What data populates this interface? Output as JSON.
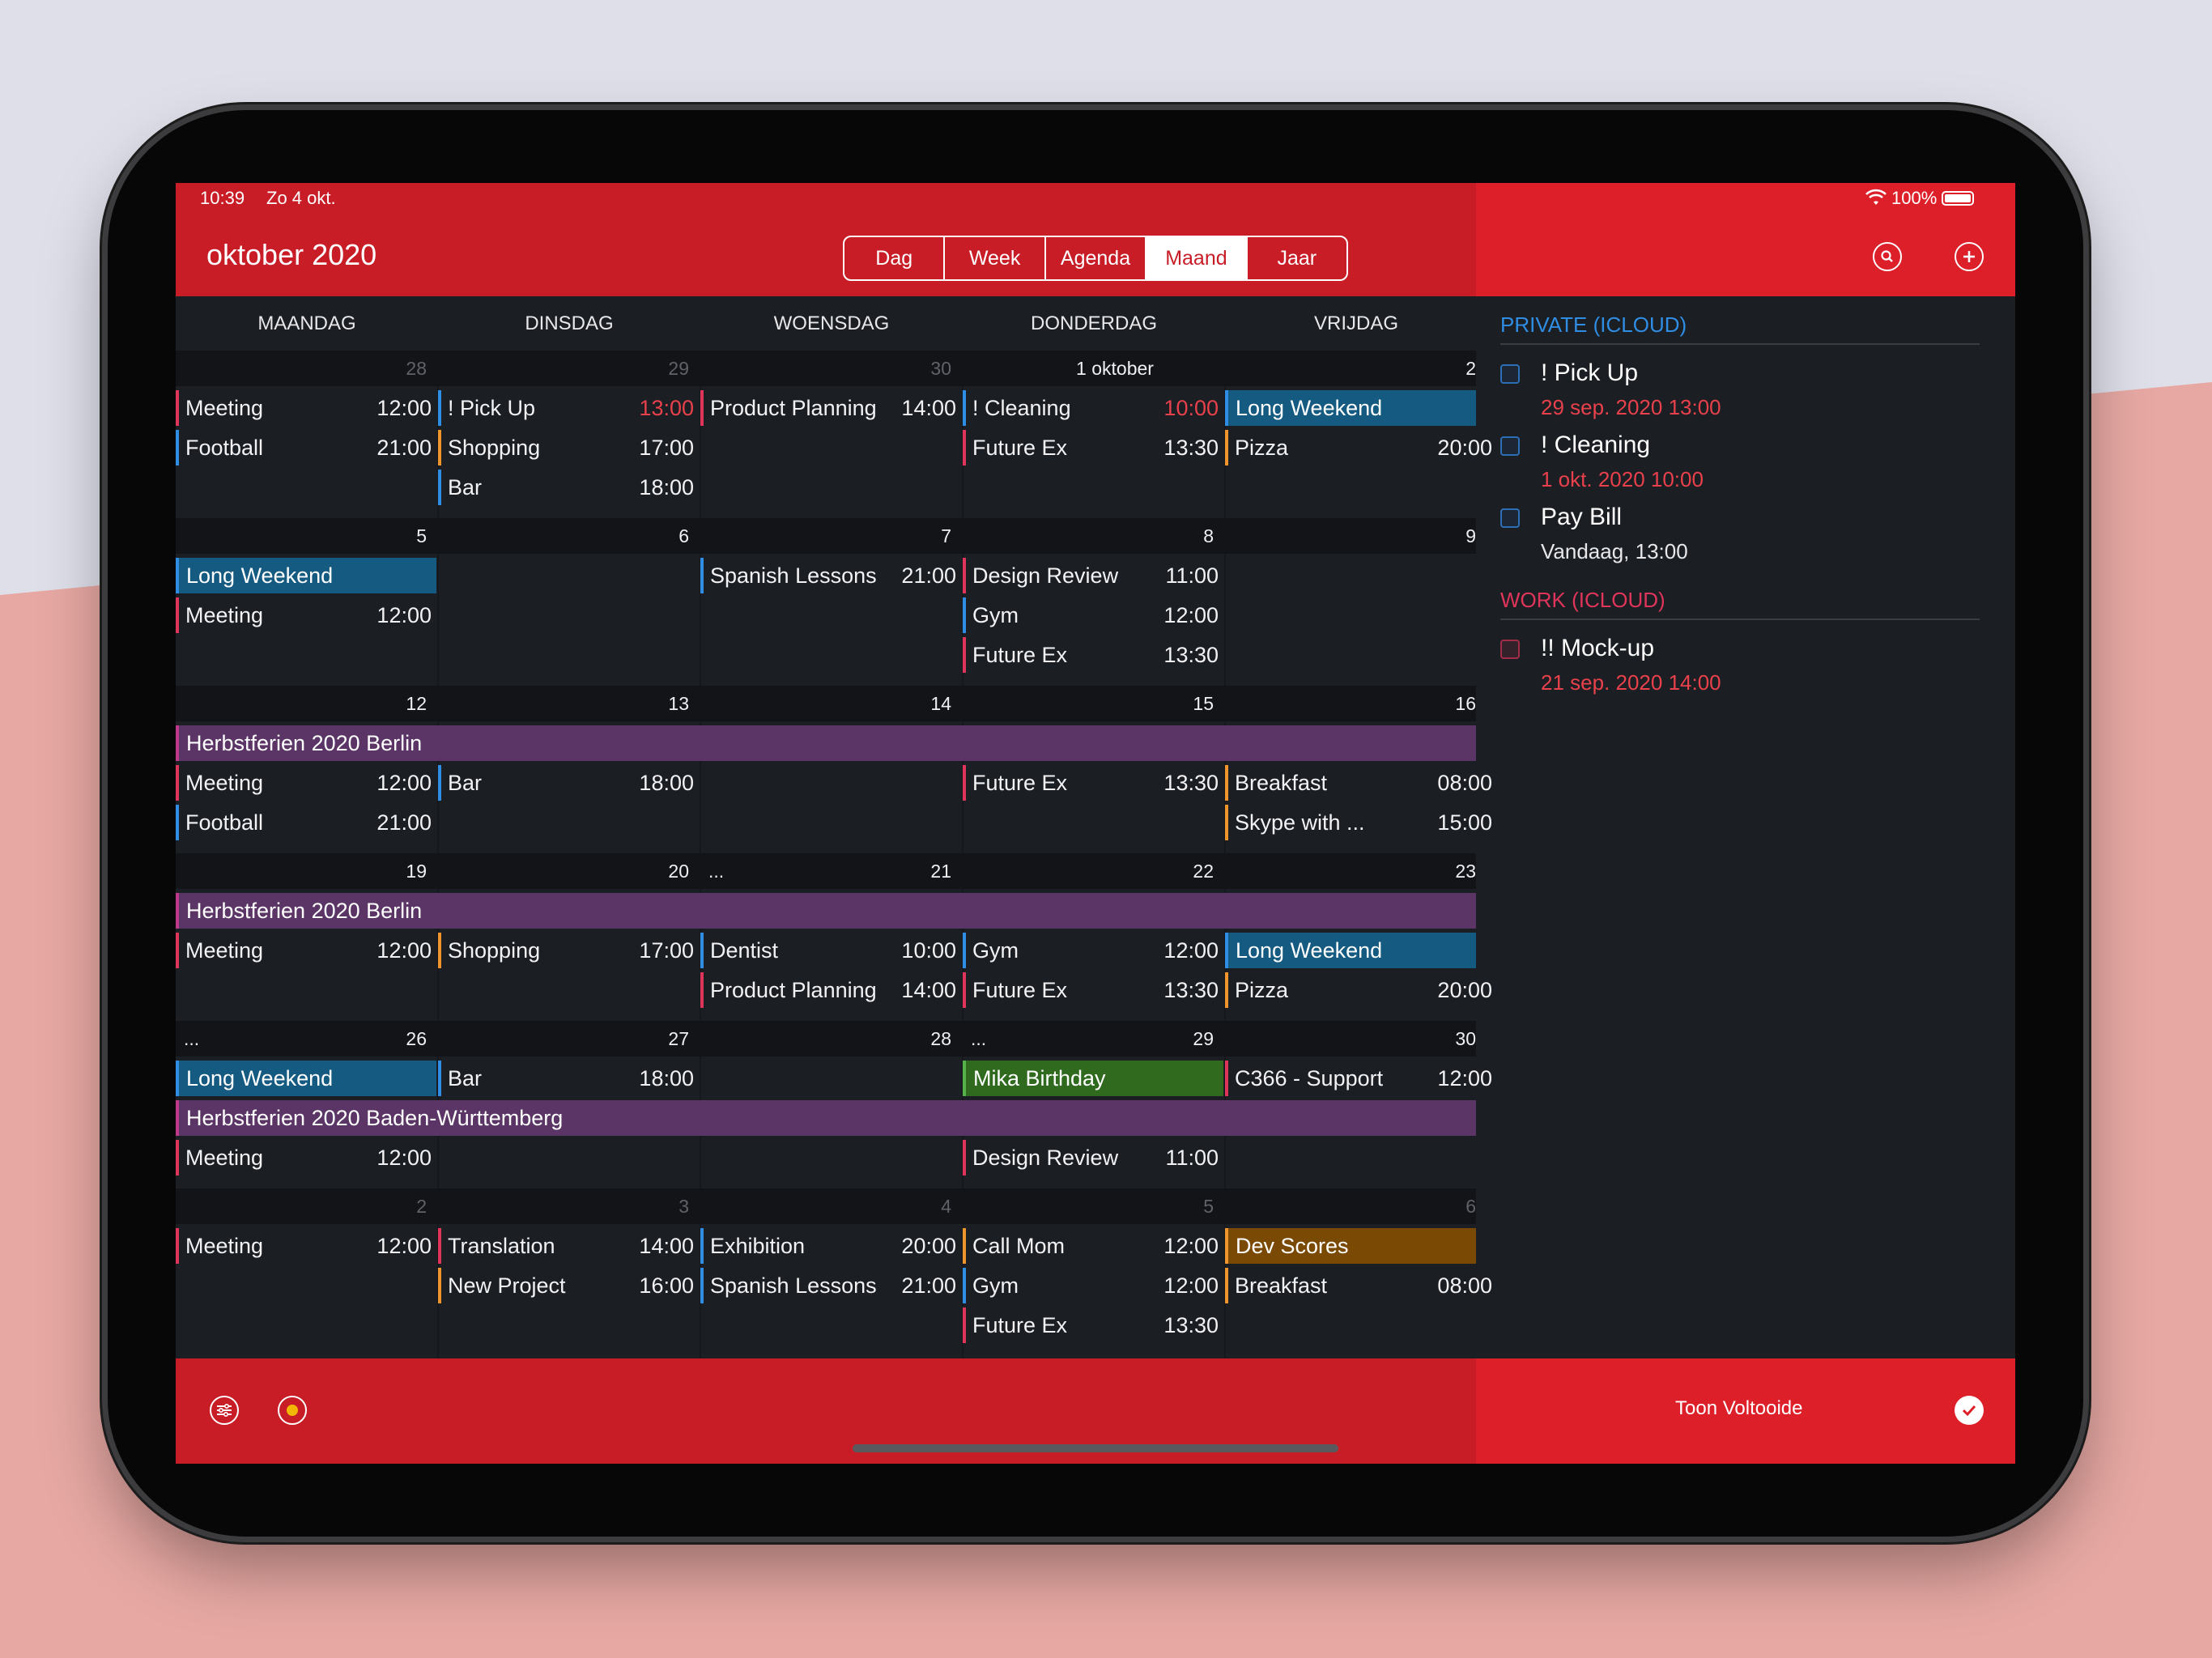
{
  "status": {
    "time": "10:39",
    "date": "Zo 4 okt.",
    "battery": "100%"
  },
  "header": {
    "title": "oktober 2020",
    "views": [
      "Dag",
      "Week",
      "Agenda",
      "Maand",
      "Jaar"
    ],
    "active_view": "Maand"
  },
  "weekdays": [
    "MAANDAG",
    "DINSDAG",
    "WOENSDAG",
    "DONDERDAG",
    "VRIJDAG"
  ],
  "weeks": [
    {
      "days": [
        "28",
        "29",
        "30",
        "1 oktober",
        "2"
      ],
      "dim": [
        true,
        true,
        true,
        false,
        false
      ]
    },
    {
      "days": [
        "5",
        "6",
        "7",
        "8",
        "9"
      ]
    },
    {
      "days": [
        "12",
        "13",
        "14",
        "15",
        "16"
      ]
    },
    {
      "days": [
        "19",
        "20",
        "21",
        "22",
        "23"
      ],
      "more": [
        null,
        null,
        "...",
        null,
        null
      ]
    },
    {
      "days": [
        "26",
        "27",
        "28",
        "29",
        "30"
      ],
      "more": [
        "...",
        null,
        null,
        "...",
        null
      ]
    },
    {
      "days": [
        "2",
        "3",
        "4",
        "5",
        "6"
      ],
      "dim": [
        true,
        true,
        true,
        true,
        true
      ]
    }
  ],
  "events": {
    "w1": [
      {
        "name": "Meeting",
        "time": "12:00"
      },
      {
        "name": "Football",
        "time": "21:00"
      },
      {
        "name": "! Pick Up",
        "time": "13:00"
      },
      {
        "name": "Shopping",
        "time": "17:00"
      },
      {
        "name": "Bar",
        "time": "18:00"
      },
      {
        "name": "Product Planning",
        "time": "14:00"
      },
      {
        "name": "! Cleaning",
        "time": "10:00"
      },
      {
        "name": "Future Ex",
        "time": "13:30"
      },
      {
        "name": "Long Weekend"
      },
      {
        "name": "Pizza",
        "time": "20:00"
      }
    ],
    "w2": [
      {
        "name": "Long Weekend"
      },
      {
        "name": "Meeting",
        "time": "12:00"
      },
      {
        "name": "Spanish Lessons",
        "time": "21:00"
      },
      {
        "name": "Design Review",
        "time": "11:00"
      },
      {
        "name": "Gym",
        "time": "12:00"
      },
      {
        "name": "Future Ex",
        "time": "13:30"
      }
    ],
    "w3": [
      {
        "name": "Herbstferien 2020 Berlin"
      },
      {
        "name": "Meeting",
        "time": "12:00"
      },
      {
        "name": "Football",
        "time": "21:00"
      },
      {
        "name": "Bar",
        "time": "18:00"
      },
      {
        "name": "Future Ex",
        "time": "13:30"
      },
      {
        "name": "Breakfast",
        "time": "08:00"
      },
      {
        "name": "Skype with ...",
        "time": "15:00"
      }
    ],
    "w4": [
      {
        "name": "Herbstferien 2020 Berlin"
      },
      {
        "name": "Meeting",
        "time": "12:00"
      },
      {
        "name": "Shopping",
        "time": "17:00"
      },
      {
        "name": "Dentist",
        "time": "10:00"
      },
      {
        "name": "Product Planning",
        "time": "14:00"
      },
      {
        "name": "Gym",
        "time": "12:00"
      },
      {
        "name": "Future Ex",
        "time": "13:30"
      },
      {
        "name": "Long Weekend"
      },
      {
        "name": "Pizza",
        "time": "20:00"
      }
    ],
    "w5": [
      {
        "name": "Long Weekend"
      },
      {
        "name": "Bar",
        "time": "18:00"
      },
      {
        "name": "Mika Birthday"
      },
      {
        "name": "C366 - Support",
        "time": "12:00"
      },
      {
        "name": "Herbstferien 2020 Baden-Württemberg"
      },
      {
        "name": "Meeting",
        "time": "12:00"
      },
      {
        "name": "Design Review",
        "time": "11:00"
      }
    ],
    "w6": [
      {
        "name": "Meeting",
        "time": "12:00"
      },
      {
        "name": "Translation",
        "time": "14:00"
      },
      {
        "name": "New Project",
        "time": "16:00"
      },
      {
        "name": "Exhibition",
        "time": "20:00"
      },
      {
        "name": "Spanish Lessons",
        "time": "21:00"
      },
      {
        "name": "Call Mom",
        "time": "12:00"
      },
      {
        "name": "Gym",
        "time": "12:00"
      },
      {
        "name": "Future Ex",
        "time": "13:30"
      },
      {
        "name": "Dev Scores"
      },
      {
        "name": "Breakfast",
        "time": "08:00"
      }
    ]
  },
  "reminders": {
    "private_title": "PRIVATE (ICLOUD)",
    "private": [
      {
        "title": "! Pick Up",
        "date": "29 sep. 2020 13:00"
      },
      {
        "title": "! Cleaning",
        "date": "1 okt. 2020 10:00"
      },
      {
        "title": "Pay Bill",
        "date": "Vandaag, 13:00"
      }
    ],
    "work_title": "WORK (ICLOUD)",
    "work": [
      {
        "title": "!! Mock-up",
        "date": "21 sep. 2020 14:00"
      }
    ]
  },
  "footer": {
    "show_completed": "Toon Voltooide"
  },
  "colors": {
    "accent": "#c81d26",
    "private": "#2f8de4",
    "work": "#e0355a",
    "holiday": "#5b3566",
    "long_weekend": "#155a80",
    "birthday": "#2f6a1f",
    "dev": "#7a4a05"
  }
}
